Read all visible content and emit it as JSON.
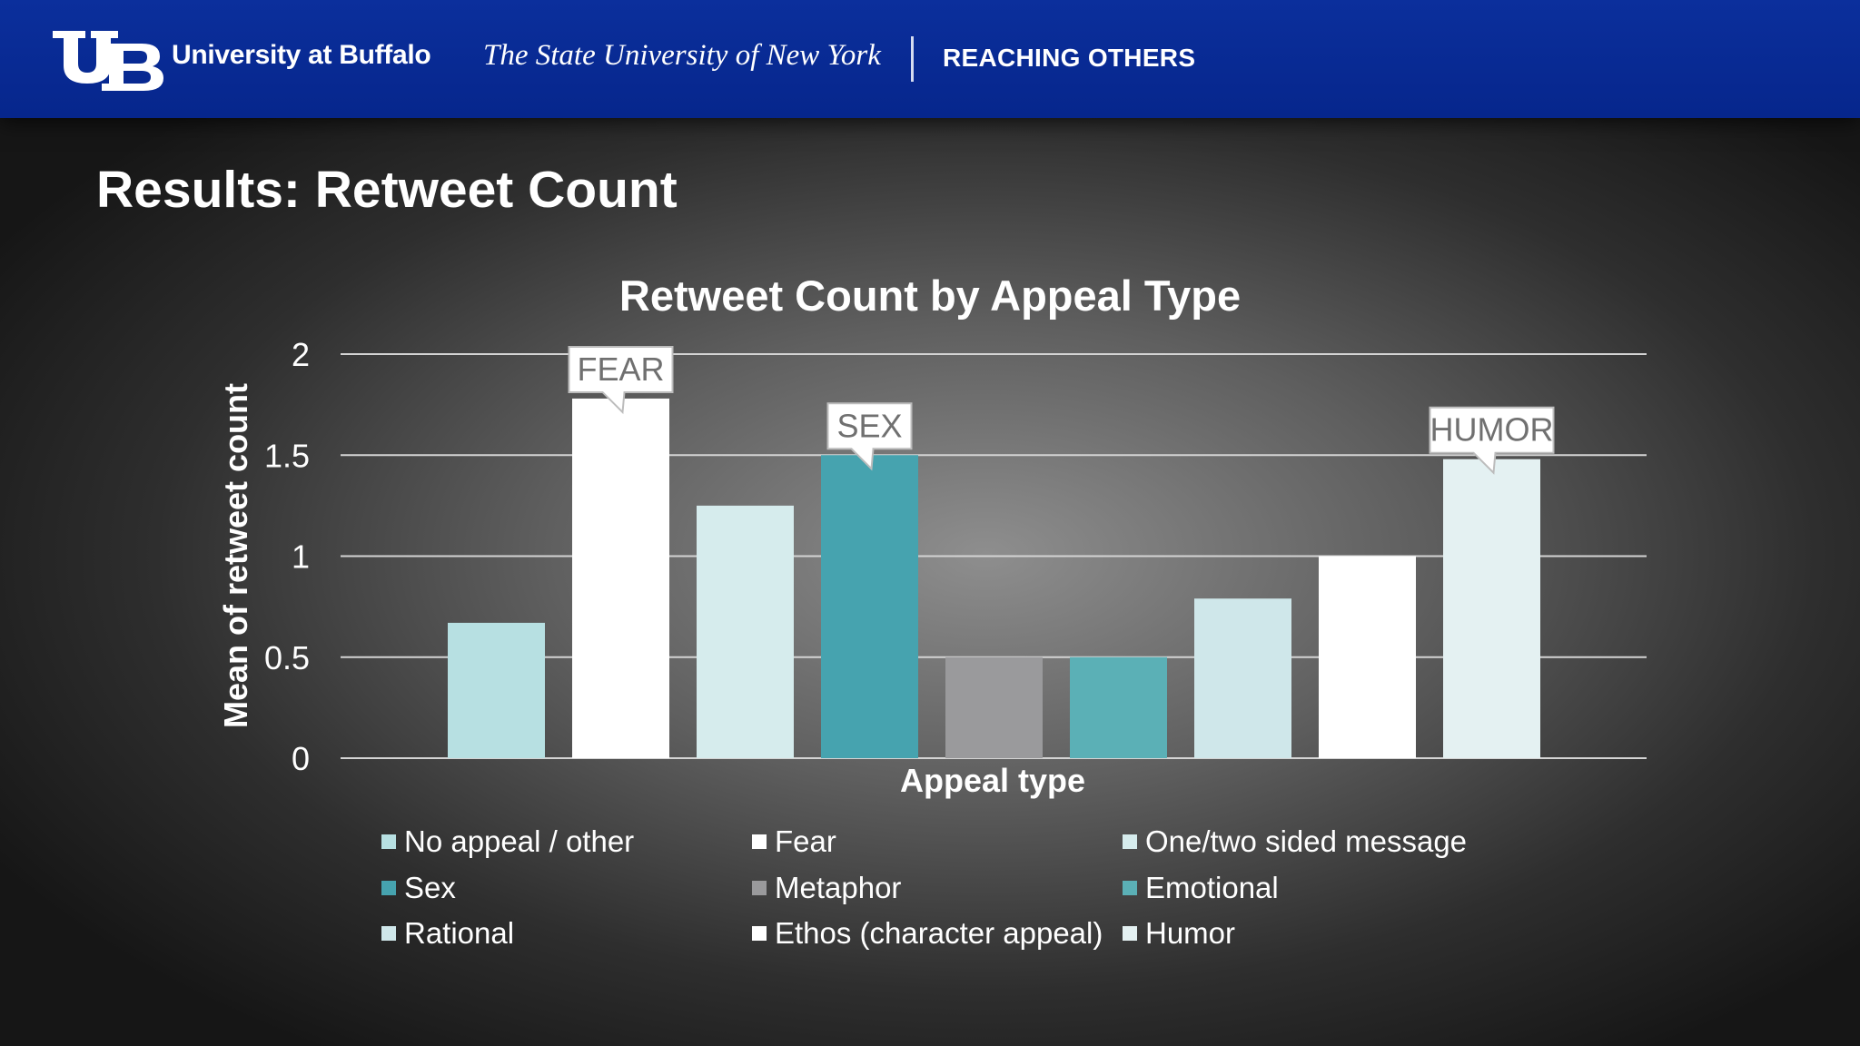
{
  "header": {
    "university_name": "University at Buffalo",
    "university_subtitle": "The State University of New York",
    "tagline": "REACHING OTHERS",
    "logo_icon": "ub-logo-icon",
    "background_color": "#06268c"
  },
  "slide": {
    "title": "Results: Retweet Count"
  },
  "chart_data": {
    "type": "bar",
    "title": "Retweet Count by Appeal Type",
    "xlabel": "Appeal type",
    "ylabel": "Mean of retweet count",
    "ylim": [
      0,
      2
    ],
    "yticks": [
      "0",
      "0.5",
      "1",
      "1.5",
      "2"
    ],
    "grid": true,
    "legend_position": "bottom",
    "series": [
      {
        "name": "No appeal / other",
        "value": 0.67,
        "color": "#b7e0e2"
      },
      {
        "name": "Fear",
        "value": 1.78,
        "color": "#ffffff"
      },
      {
        "name": "One/two sided message",
        "value": 1.25,
        "color": "#d6eced"
      },
      {
        "name": "Sex",
        "value": 1.5,
        "color": "#46a3af"
      },
      {
        "name": "Metaphor",
        "value": 0.5,
        "color": "#9a9a9c"
      },
      {
        "name": "Emotional",
        "value": 0.5,
        "color": "#5bb0b6"
      },
      {
        "name": "Rational",
        "value": 0.79,
        "color": "#cfe7ea"
      },
      {
        "name": "Ethos (character appeal)",
        "value": 1.0,
        "color": "#ffffff"
      },
      {
        "name": "Humor",
        "value": 1.48,
        "color": "#e4f1f2"
      }
    ],
    "annotations": [
      {
        "text": "FEAR",
        "series_index": 1
      },
      {
        "text": "SEX",
        "series_index": 3
      },
      {
        "text": "HUMOR",
        "series_index": 8
      }
    ]
  }
}
